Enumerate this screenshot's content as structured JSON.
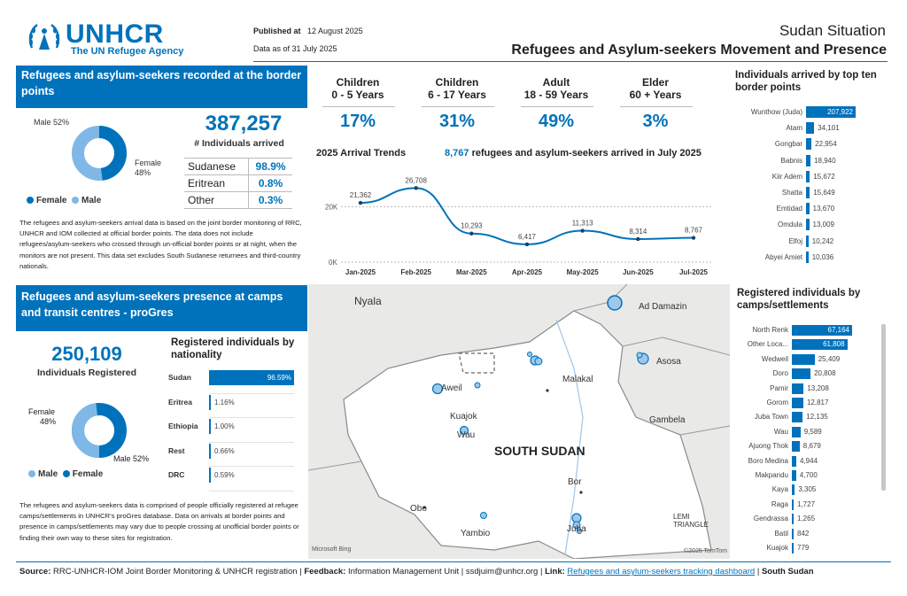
{
  "header": {
    "logo_name": "UNHCR",
    "logo_sub": "The UN Refugee Agency",
    "published_label": "Published at",
    "published_date": "12 August 2025",
    "data_as_of": "Data as of 31 July 2025",
    "situation": "Sudan Situation",
    "title": "Refugees and Asylum-seekers Movement and Presence"
  },
  "border": {
    "section_title": "Refugees and asylum-seekers recorded at the border points",
    "total": "387,257",
    "total_label": "# Individuals arrived",
    "gender": {
      "male_label": "Male 52%",
      "female_label_1": "Female",
      "female_label_2": "48%",
      "male_pct": 52,
      "female_pct": 48
    },
    "legend_female": "Female",
    "legend_male": "Male",
    "nationalities": [
      {
        "name": "Sudanese",
        "pct": "98.9%"
      },
      {
        "name": "Eritrean",
        "pct": "0.8%"
      },
      {
        "name": "Other",
        "pct": "0.3%"
      }
    ],
    "note": "The refugees and asylum-seekers arrival data is based on the joint border monitoring of RRC, UNHCR and IOM collected at official border points. The data does not include refugees/asylum-seekers who crossed through un-official border points or at night, when the monitors are not present. This data set excludes South Sudanese returnees and third-country nationals."
  },
  "age_groups": [
    {
      "label1": "Children",
      "label2": "0 - 5 Years",
      "pct": "17%"
    },
    {
      "label1": "Children",
      "label2": "6 - 17 Years",
      "pct": "31%"
    },
    {
      "label1": "Adult",
      "label2": "18 - 59 Years",
      "pct": "49%"
    },
    {
      "label1": "Elder",
      "label2": "60 + Years",
      "pct": "3%"
    }
  ],
  "trend": {
    "title": "2025 Arrival Trends",
    "highlight_num": "8,767",
    "highlight_text": "refugees and asylum-seekers arrived in July 2025"
  },
  "chart_data": [
    {
      "type": "line",
      "title": "2025 Arrival Trends",
      "categories": [
        "Jan-2025",
        "Feb-2025",
        "Mar-2025",
        "Apr-2025",
        "May-2025",
        "Jun-2025",
        "Jul-2025"
      ],
      "values": [
        21362,
        26708,
        10293,
        6417,
        11313,
        8314,
        8767
      ],
      "value_labels": [
        "21,362",
        "26,708",
        "10,293",
        "6,417",
        "11,313",
        "8,314",
        "8,767"
      ],
      "yticks": [
        "0K",
        "20K"
      ],
      "ylim": [
        0,
        30000
      ],
      "color": "#0072bc"
    },
    {
      "type": "bar",
      "title": "Individuals arrived by top ten border points",
      "categories": [
        "Wunthow (Juda)",
        "Atam",
        "Gongbar",
        "Babnis",
        "Kiir Adem",
        "Shatta",
        "Emtidad",
        "Omdula",
        "Elfoj",
        "Abyei Amiet"
      ],
      "values": [
        207922,
        34101,
        22954,
        18940,
        15672,
        15649,
        13670,
        13009,
        10242,
        10036
      ],
      "value_labels": [
        "207,922",
        "34,101",
        "22,954",
        "18,940",
        "15,672",
        "15,649",
        "13,670",
        "13,009",
        "10,242",
        "10,036"
      ]
    },
    {
      "type": "bar",
      "title": "Registered individuals by nationality",
      "categories": [
        "Sudan",
        "Eritrea",
        "Ethiopia",
        "Rest",
        "DRC"
      ],
      "values": [
        96.59,
        1.16,
        1.0,
        0.66,
        0.59
      ],
      "value_labels": [
        "96.59%",
        "1.16%",
        "1.00%",
        "0.66%",
        "0.59%"
      ]
    },
    {
      "type": "bar",
      "title": "Registered individuals by camps/settlements",
      "categories": [
        "North Renk",
        "Other Loca...",
        "Wedweil",
        "Doro",
        "Pamir",
        "Gorom",
        "Juba Town",
        "Wau",
        "Ajuong Thok",
        "Boro Medina",
        "Makpandu",
        "Kaya",
        "Raga",
        "Gendrassa",
        "Batil",
        "Kuajok"
      ],
      "values": [
        67164,
        61808,
        25409,
        20808,
        13208,
        12817,
        12135,
        9589,
        8679,
        4944,
        4700,
        3305,
        1727,
        1265,
        842,
        779
      ],
      "value_labels": [
        "67,164",
        "61,808",
        "25,409",
        "20,808",
        "13,208",
        "12,817",
        "12,135",
        "9,589",
        "8,679",
        "4,944",
        "4,700",
        "3,305",
        "1,727",
        "1,265",
        "842",
        "779"
      ]
    }
  ],
  "top_points": {
    "title": "Individuals arrived by top ten border points"
  },
  "presence": {
    "section_title": "Refugees and asylum-seekers presence at camps and transit centres - proGres",
    "total": "250,109",
    "total_label": "Individuals Registered",
    "nat_title": "Registered individuals by nationality",
    "gender": {
      "female_label_1": "Female",
      "female_label_2": "48%",
      "male_label": "Male 52%",
      "male_pct": 52,
      "female_pct": 48
    },
    "legend_male": "Male",
    "legend_female": "Female",
    "note": "The refugees and asylum-seekers data is comprised of people officially registered at refugee camps/settlements in UNHCR's proGres database. Data on arrivals at border points and presence in camps/settlements may vary due to people crossing at unofficial border points or finding their own way to these sites for registration."
  },
  "camps": {
    "title": "Registered individuals by camps/settlements"
  },
  "map": {
    "country": "SOUTH SUDAN",
    "places": [
      "Nyala",
      "Ad Damazin",
      "Asosa",
      "Malakal",
      "Aweil",
      "Kuajok",
      "Wau",
      "Gambela",
      "Bor",
      "Juba",
      "Yambio",
      "Obo",
      "LEMI TRIANGLE"
    ],
    "credit_left": "Microsoft Bing",
    "credit_right": "©2025 TomTom"
  },
  "footer": {
    "source_label": "Source:",
    "source_text": "RRC-UNHCR-IOM Joint Border Monitoring & UNHCR registration |",
    "feedback_label": "Feedback:",
    "feedback_text": "Information Management Unit | ssdjuim@unhcr.org |",
    "link_label": "Link:",
    "link_text": "Refugees and asylum-seekers tracking dashboard",
    "country_sep": "|",
    "country": "South Sudan"
  },
  "colors": {
    "brand": "#0072bc",
    "light": "#7fb8e6"
  }
}
